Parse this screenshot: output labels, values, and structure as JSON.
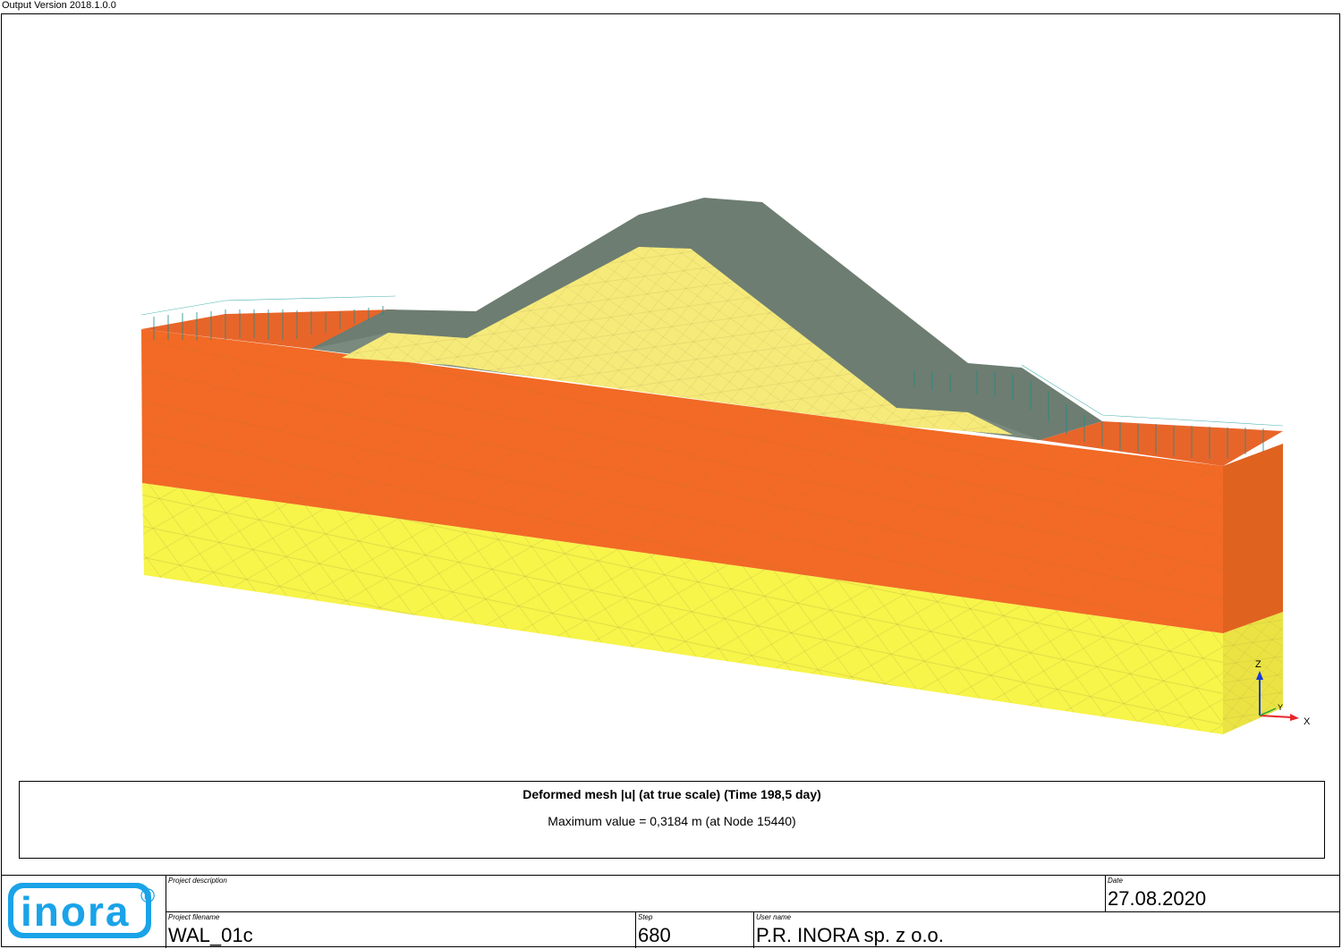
{
  "header": {
    "version": "Output Version 2018.1.0.0"
  },
  "axes": {
    "z": "Z",
    "y": "Y",
    "x": "X"
  },
  "caption": {
    "title": "Deformed mesh |u| (at true scale) (Time 198,5 day)",
    "subtitle": "Maximum value = 0,3184 m (at Node 15440)"
  },
  "footer": {
    "logo_text": "inora",
    "logo_mark": "®",
    "project_description_label": "Project description",
    "project_description": "",
    "date_label": "Date",
    "date": "27.08.2020",
    "project_filename_label": "Project filename",
    "project_filename": "WAL_01c",
    "step_label": "Step",
    "step": "680",
    "user_name_label": "User name",
    "user_name": "P.R. INORA sp. z o.o."
  },
  "colors": {
    "clay_orange": "#f26a25",
    "clay_orange_dark": "#e0621f",
    "sand_yellow": "#f7f44a",
    "sand_yellow_dark": "#eae343",
    "core_yellow": "#f6ea7a",
    "cover_grey": "#6f7f73",
    "load_teal": "#1e8a8a",
    "logo_blue": "#1aa3e8"
  }
}
